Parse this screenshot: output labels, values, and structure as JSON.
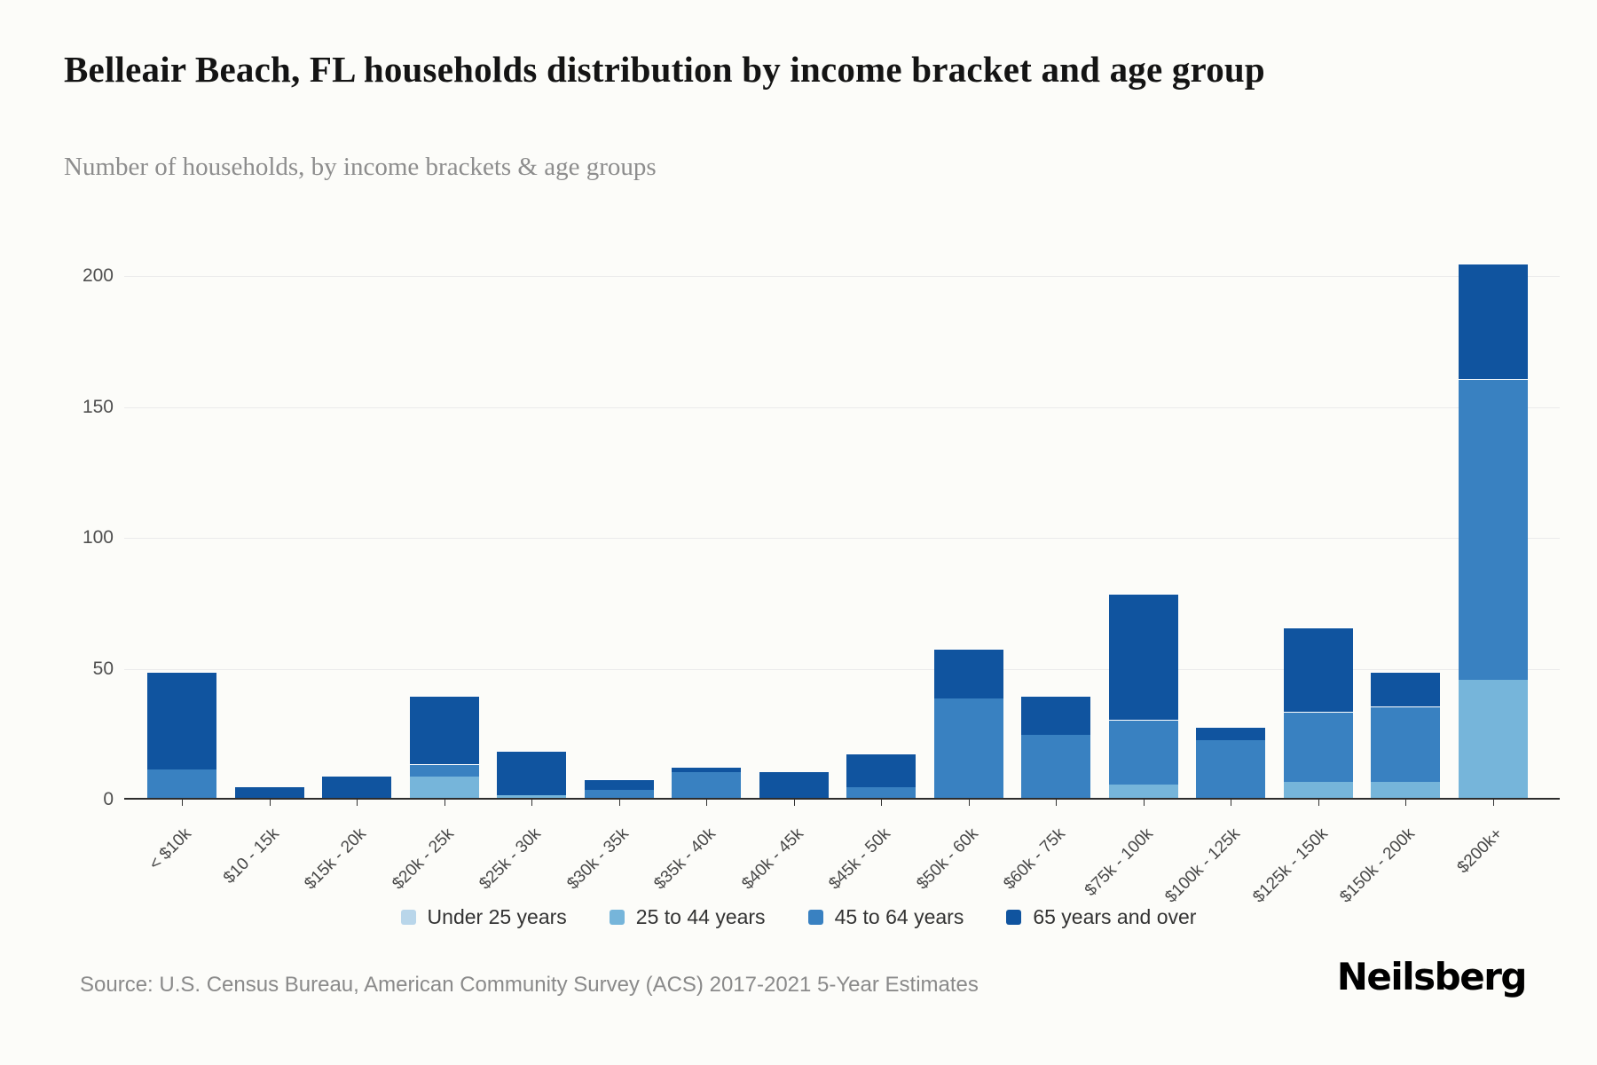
{
  "header": {
    "title": "Belleair Beach, FL households distribution by income bracket and age group",
    "subtitle": "Number of households, by income brackets & age groups"
  },
  "footer": {
    "source": "Source: U.S. Census Bureau, American Community Survey (ACS) 2017-2021 5-Year Estimates",
    "logo": "Neilsberg"
  },
  "colors": {
    "background": "#fcfcf9",
    "grid": "#ebebeb",
    "axis": "#2d2d2d",
    "under_25": "#b9d6ea",
    "25_to_44": "#76b5da",
    "45_to_64": "#3981c1",
    "65_and_over": "#10549f"
  },
  "chart_data": {
    "type": "bar",
    "stacked": true,
    "title": "Belleair Beach, FL households distribution by income bracket and age group",
    "subtitle": "Number of households, by income brackets & age groups",
    "xlabel": "",
    "ylabel": "Number of households",
    "ylim": [
      0,
      200
    ],
    "yticks": [
      0,
      50,
      100,
      150,
      200
    ],
    "grid": true,
    "legend_position": "bottom",
    "categories": [
      "< $10k",
      "$10 - 15k",
      "$15k - 20k",
      "$20k - 25k",
      "$25k - 30k",
      "$30k - 35k",
      "$35k - 40k",
      "$40k - 45k",
      "$45k - 50k",
      "$50k - 60k",
      "$60k - 75k",
      "$75k - 100k",
      "$100k - 125k",
      "$125k - 150k",
      "$150k - 200k",
      "$200k+"
    ],
    "series": [
      {
        "name": "Under 25 years",
        "color": "#b9d6ea",
        "values": [
          0,
          0,
          0,
          0,
          0,
          0,
          0,
          0,
          0,
          0,
          0,
          0,
          0,
          0,
          0,
          0
        ]
      },
      {
        "name": "25 to 44 years",
        "color": "#76b5da",
        "values": [
          0,
          0,
          0,
          8,
          1,
          0,
          0,
          0,
          0,
          0,
          0,
          5,
          0,
          6,
          6,
          45
        ]
      },
      {
        "name": "45 to 64 years",
        "color": "#3981c1",
        "values": [
          11,
          0,
          0,
          5,
          0,
          3,
          10,
          0,
          4,
          38,
          24,
          25,
          22,
          27,
          29,
          115
        ]
      },
      {
        "name": "65 years and over",
        "color": "#10549f",
        "values": [
          37,
          4,
          8,
          26,
          17,
          4,
          2,
          10,
          13,
          19,
          15,
          48,
          5,
          32,
          13,
          44
        ]
      }
    ]
  }
}
